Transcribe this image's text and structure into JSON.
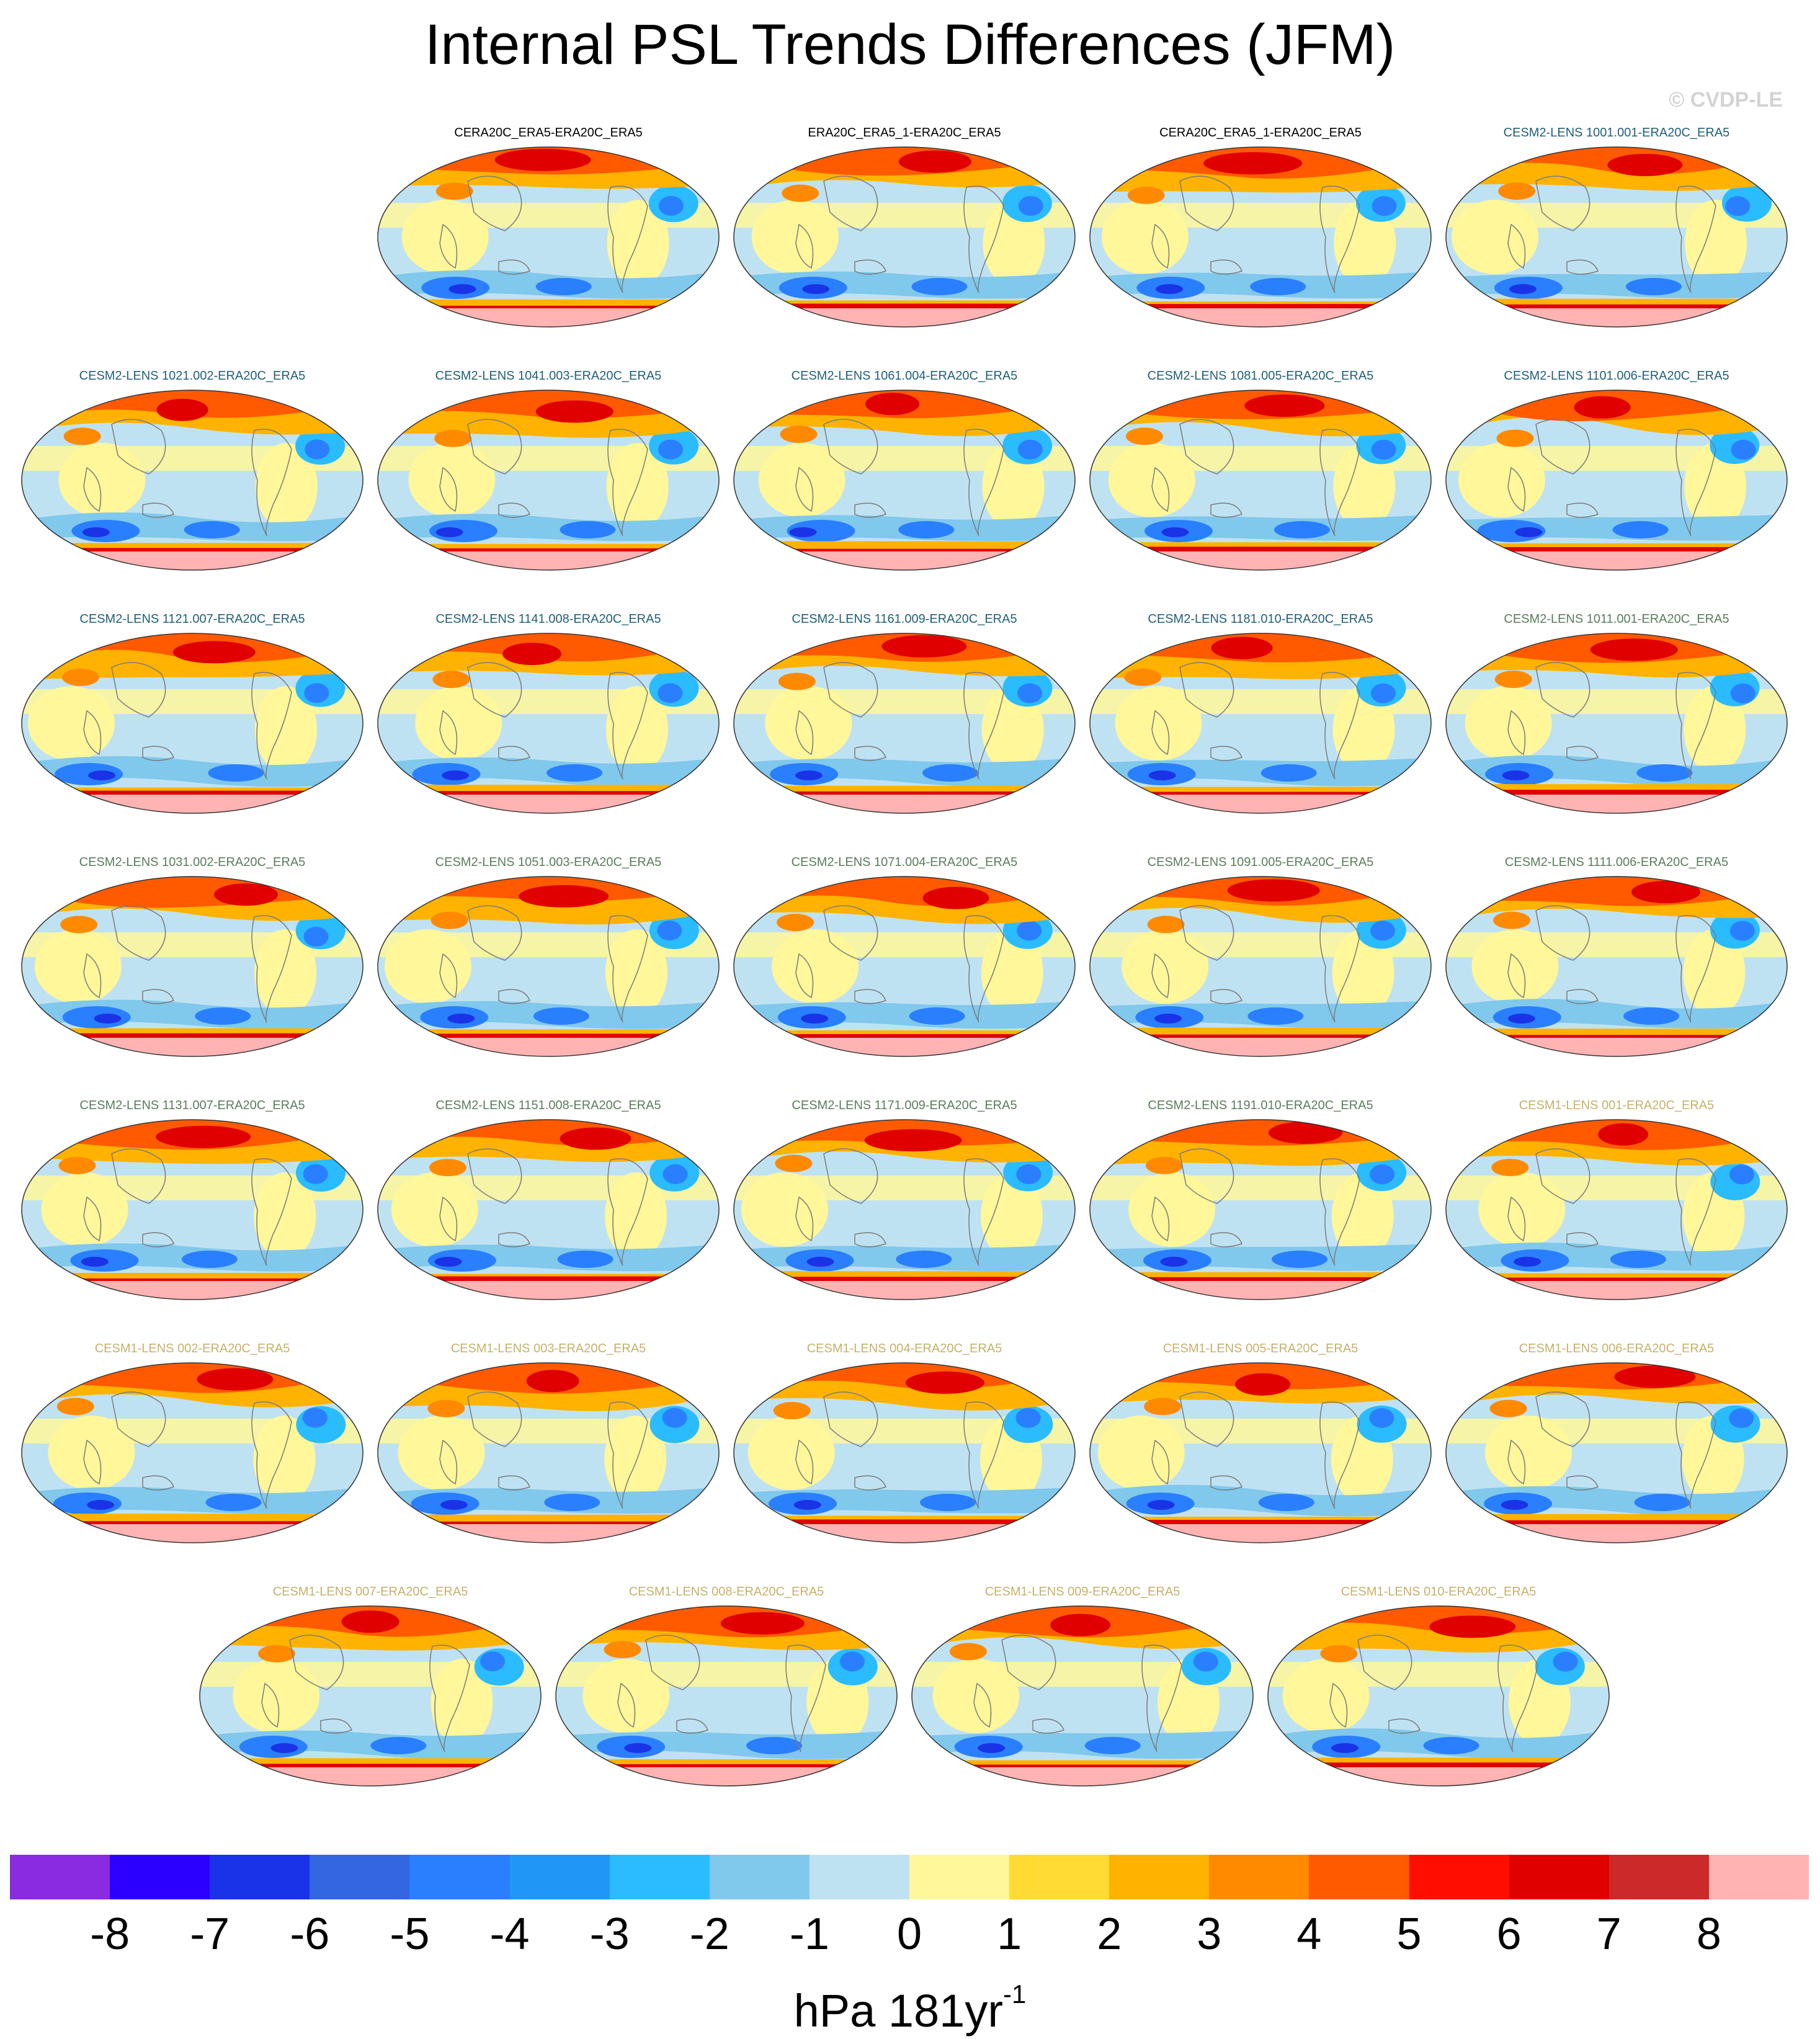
{
  "title": "Internal PSL Trends Differences (JFM)",
  "copyright": "© CVDP-LE",
  "label_colors": {
    "obs": "#000000",
    "cesm2_a": "#1f5f7a",
    "cesm2_b": "#5a7d5a",
    "cesm1": "#c8b06a"
  },
  "panels": [
    {
      "label": "CERA20C_ERA5-ERA20C_ERA5",
      "group": "obs",
      "variant": 0
    },
    {
      "label": "ERA20C_ERA5_1-ERA20C_ERA5",
      "group": "obs",
      "variant": 1
    },
    {
      "label": "CERA20C_ERA5_1-ERA20C_ERA5",
      "group": "obs",
      "variant": 2
    },
    {
      "label": "CESM2-LENS 1001.001-ERA20C_ERA5",
      "group": "cesm2_a",
      "variant": 3
    },
    {
      "label": "CESM2-LENS 1021.002-ERA20C_ERA5",
      "group": "cesm2_a",
      "variant": 4
    },
    {
      "label": "CESM2-LENS 1041.003-ERA20C_ERA5",
      "group": "cesm2_a",
      "variant": 5
    },
    {
      "label": "CESM2-LENS 1061.004-ERA20C_ERA5",
      "group": "cesm2_a",
      "variant": 6
    },
    {
      "label": "CESM2-LENS 1081.005-ERA20C_ERA5",
      "group": "cesm2_a",
      "variant": 7
    },
    {
      "label": "CESM2-LENS 1101.006-ERA20C_ERA5",
      "group": "cesm2_a",
      "variant": 8
    },
    {
      "label": "CESM2-LENS 1121.007-ERA20C_ERA5",
      "group": "cesm2_a",
      "variant": 9
    },
    {
      "label": "CESM2-LENS 1141.008-ERA20C_ERA5",
      "group": "cesm2_a",
      "variant": 10
    },
    {
      "label": "CESM2-LENS 1161.009-ERA20C_ERA5",
      "group": "cesm2_a",
      "variant": 11
    },
    {
      "label": "CESM2-LENS 1181.010-ERA20C_ERA5",
      "group": "cesm2_a",
      "variant": 12
    },
    {
      "label": "CESM2-LENS 1011.001-ERA20C_ERA5",
      "group": "cesm2_b",
      "variant": 13
    },
    {
      "label": "CESM2-LENS 1031.002-ERA20C_ERA5",
      "group": "cesm2_b",
      "variant": 14
    },
    {
      "label": "CESM2-LENS 1051.003-ERA20C_ERA5",
      "group": "cesm2_b",
      "variant": 15
    },
    {
      "label": "CESM2-LENS 1071.004-ERA20C_ERA5",
      "group": "cesm2_b",
      "variant": 16
    },
    {
      "label": "CESM2-LENS 1091.005-ERA20C_ERA5",
      "group": "cesm2_b",
      "variant": 17
    },
    {
      "label": "CESM2-LENS 1111.006-ERA20C_ERA5",
      "group": "cesm2_b",
      "variant": 18
    },
    {
      "label": "CESM2-LENS 1131.007-ERA20C_ERA5",
      "group": "cesm2_b",
      "variant": 19
    },
    {
      "label": "CESM2-LENS 1151.008-ERA20C_ERA5",
      "group": "cesm2_b",
      "variant": 20
    },
    {
      "label": "CESM2-LENS 1171.009-ERA20C_ERA5",
      "group": "cesm2_b",
      "variant": 21
    },
    {
      "label": "CESM2-LENS 1191.010-ERA20C_ERA5",
      "group": "cesm2_b",
      "variant": 22
    },
    {
      "label": "CESM1-LENS 001-ERA20C_ERA5",
      "group": "cesm1",
      "variant": 23
    },
    {
      "label": "CESM1-LENS 002-ERA20C_ERA5",
      "group": "cesm1",
      "variant": 24
    },
    {
      "label": "CESM1-LENS 003-ERA20C_ERA5",
      "group": "cesm1",
      "variant": 25
    },
    {
      "label": "CESM1-LENS 004-ERA20C_ERA5",
      "group": "cesm1",
      "variant": 26
    },
    {
      "label": "CESM1-LENS 005-ERA20C_ERA5",
      "group": "cesm1",
      "variant": 27
    },
    {
      "label": "CESM1-LENS 006-ERA20C_ERA5",
      "group": "cesm1",
      "variant": 28
    },
    {
      "label": "CESM1-LENS 007-ERA20C_ERA5",
      "group": "cesm1",
      "variant": 29
    },
    {
      "label": "CESM1-LENS 008-ERA20C_ERA5",
      "group": "cesm1",
      "variant": 30
    },
    {
      "label": "CESM1-LENS 009-ERA20C_ERA5",
      "group": "cesm1",
      "variant": 31
    },
    {
      "label": "CESM1-LENS 010-ERA20C_ERA5",
      "group": "cesm1",
      "variant": 32
    }
  ],
  "colorbar": {
    "colors": [
      "#8a2be2",
      "#2b00ff",
      "#1a33e6",
      "#3366e0",
      "#2a7fff",
      "#1f97f5",
      "#2bbcff",
      "#80c8ec",
      "#bfe2f2",
      "#fff799",
      "#ffdb33",
      "#ffb300",
      "#ff8a00",
      "#ff5a00",
      "#ff0f00",
      "#e00000",
      "#cc2a2a",
      "#ffb3b3"
    ],
    "ticks": [
      "-8",
      "-7",
      "-6",
      "-5",
      "-4",
      "-3",
      "-2",
      "-1",
      "0",
      "1",
      "2",
      "3",
      "4",
      "5",
      "6",
      "7",
      "8"
    ]
  },
  "units": {
    "base": "hPa 181yr",
    "sup": "-1"
  }
}
